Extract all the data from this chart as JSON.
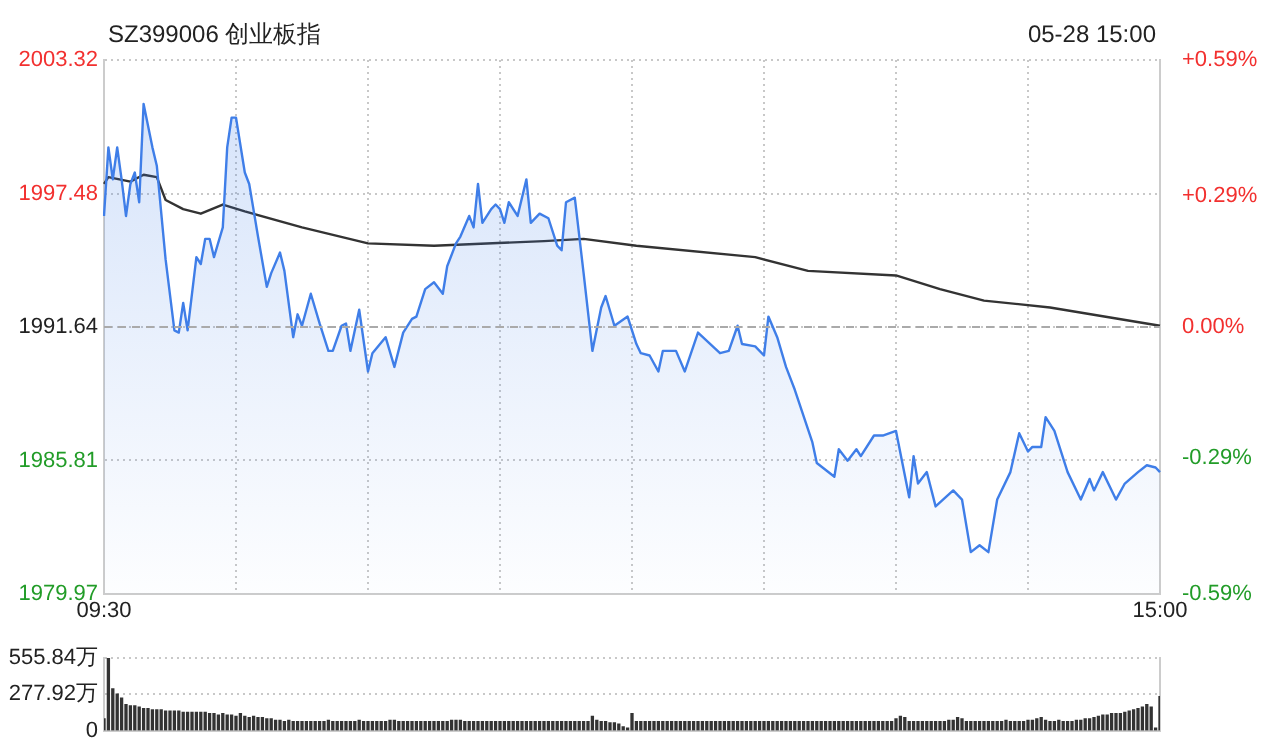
{
  "chart_data": [
    {
      "type": "line",
      "title": "SZ399006 创业板指",
      "annotations": [
        "05-28 15:00"
      ],
      "categories": [
        "09:30",
        null,
        null,
        null,
        null,
        null,
        null,
        null,
        null,
        null,
        null,
        null,
        null,
        null,
        null,
        null,
        null,
        null,
        null,
        null,
        null,
        null,
        null,
        null,
        null,
        null,
        null,
        null,
        null,
        null,
        null,
        null,
        null,
        null,
        null,
        null,
        null,
        null,
        null,
        null,
        null,
        null,
        null,
        null,
        null,
        null,
        null,
        null,
        null,
        null,
        null,
        null,
        null,
        null,
        null,
        null,
        null,
        null,
        null,
        null,
        null,
        null,
        null,
        null,
        null,
        null,
        null,
        null,
        null,
        null,
        null,
        null,
        null,
        null,
        null,
        null,
        null,
        null,
        null,
        null,
        null,
        null,
        null,
        null,
        null,
        null,
        null,
        null,
        null,
        null,
        null,
        null,
        null,
        null,
        null,
        null,
        null,
        null,
        null,
        null,
        null,
        null,
        null,
        null,
        null,
        null,
        null,
        null,
        null,
        null,
        null,
        null,
        null,
        null,
        null,
        null,
        null,
        null,
        null,
        null,
        null,
        null,
        null,
        null,
        null,
        null,
        null,
        null,
        null,
        null,
        null,
        null,
        null,
        null,
        null,
        null,
        null,
        null,
        null,
        null,
        null,
        null,
        null,
        null,
        null,
        null,
        null,
        null,
        null,
        null,
        null,
        null,
        null,
        null,
        null,
        null,
        null,
        null,
        null,
        null,
        null,
        null,
        null,
        null,
        null,
        null,
        null,
        null,
        null,
        null,
        null,
        null,
        null,
        null,
        null,
        null,
        null,
        null,
        null,
        null,
        null,
        null,
        null,
        null,
        null,
        null,
        null,
        null,
        null,
        null,
        null,
        null,
        null,
        null,
        null,
        null,
        null,
        null,
        null,
        null,
        null,
        null,
        null,
        null,
        null,
        null,
        null,
        null,
        null,
        null,
        null,
        null,
        null,
        null,
        null,
        null,
        null,
        null,
        null,
        null,
        null,
        null,
        null,
        null,
        null,
        null,
        null,
        null,
        null,
        null,
        null,
        null,
        null,
        null,
        null,
        null,
        null,
        null,
        null,
        null,
        "15:00"
      ],
      "ylim": [
        1979.97,
        2003.32
      ],
      "yticks": [
        1979.97,
        1985.81,
        1991.64,
        1997.48,
        2003.32
      ],
      "y2lim": [
        -0.59,
        0.59
      ],
      "y2ticks": [
        {
          "value": -0.59,
          "label": "-0.59%"
        },
        {
          "value": -0.29,
          "label": "-0.29%"
        },
        {
          "value": 0,
          "label": "0.00%"
        },
        {
          "value": 0.29,
          "label": "+0.29%"
        },
        {
          "value": 0.59,
          "label": "+0.59%"
        }
      ],
      "grid": true,
      "legend": false,
      "marker": "none",
      "ref_lines": [
        {
          "axis": "y",
          "value": 1991.64,
          "color": "#aaaaaa",
          "line_style": "dashed"
        }
      ],
      "series": [
        {
          "type": "area",
          "color": "#3f7ee8",
          "values": [
            1996.5,
            1999.5,
            1998.1,
            1999.5,
            1998.1,
            1996.5,
            1997.9,
            1998.4,
            1997.1,
            2001.4,
            null,
            1999.5,
            1998.7,
            null,
            1994.6,
            null,
            1991.5,
            1991.4,
            1992.7,
            1991.5,
            null,
            1994.7,
            1994.4,
            1995.5,
            1995.5,
            1994.7,
            null,
            1996.0,
            1999.5,
            2000.8,
            2000.8,
            null,
            1998.4,
            1997.9,
            null,
            1995.6,
            null,
            1993.4,
            1994.0,
            null,
            1994.9,
            1994.1,
            null,
            1991.2,
            1992.2,
            1991.7,
            null,
            1993.1,
            null,
            1991.8,
            null,
            1990.6,
            1990.6,
            null,
            1991.7,
            1991.8,
            1990.6,
            null,
            1992.4,
            null,
            1989.7,
            1990.5,
            null,
            null,
            1991.2,
            null,
            1989.9,
            null,
            1991.4,
            null,
            1992.0,
            1992.1,
            null,
            1993.3,
            null,
            1993.6,
            null,
            1993.1,
            1994.3,
            null,
            1995.3,
            1995.6,
            null,
            1996.5,
            1996.0,
            1997.9,
            1996.2,
            null,
            1996.8,
            1997.0,
            1996.8,
            1996.2,
            1997.1,
            null,
            1996.5,
            null,
            1998.1,
            1996.2,
            null,
            1996.6,
            null,
            1996.4,
            null,
            1995.2,
            1995.0,
            1997.1,
            null,
            1997.3,
            null,
            1994.0,
            null,
            1990.6,
            null,
            1992.5,
            1993.0,
            null,
            1991.7,
            null,
            null,
            1992.1,
            null,
            1990.9,
            1990.5,
            null,
            1990.4,
            null,
            1989.7,
            1990.6,
            null,
            null,
            1990.6,
            null,
            1989.7,
            null,
            null,
            1991.4,
            null,
            null,
            null,
            null,
            1990.5,
            null,
            1990.6,
            null,
            1991.7,
            1990.9,
            null,
            null,
            1990.8,
            null,
            1990.4,
            1992.1,
            null,
            1991.2,
            null,
            1989.9,
            null,
            1988.9,
            null,
            null,
            null,
            1986.6,
            1985.7,
            null,
            null,
            null,
            1985.1,
            1986.3,
            null,
            1985.8,
            null,
            1986.3,
            1986.0,
            null,
            null,
            1986.9,
            null,
            1986.9,
            null,
            null,
            1987.1,
            null,
            null,
            1984.2,
            1986.0,
            1984.8,
            null,
            1985.3,
            null,
            1983.8,
            null,
            null,
            null,
            1984.5,
            null,
            1984.1,
            null,
            1981.8,
            null,
            1982.1,
            null,
            1981.8,
            null,
            1984.1,
            null,
            null,
            1985.3,
            null,
            1987.0,
            null,
            1986.2,
            1986.4,
            null,
            1986.4,
            1987.7,
            null,
            1987.1,
            null,
            null,
            1985.3,
            null,
            null,
            1984.1,
            null,
            1985.0,
            1984.5,
            null,
            1985.3,
            null,
            null,
            1984.1,
            null,
            1984.8,
            null,
            null,
            1985.3,
            null,
            1985.6,
            null,
            1985.5,
            1985.3
          ]
        },
        {
          "type": "line",
          "color": "#333333",
          "values": [
            1997.9,
            1998.2,
            null,
            null,
            null,
            null,
            1998.0,
            null,
            null,
            1998.3,
            null,
            null,
            1998.2,
            null,
            1997.2,
            null,
            null,
            null,
            1996.8,
            null,
            null,
            null,
            1996.6,
            null,
            null,
            null,
            null,
            1997.0,
            null,
            null,
            null,
            null,
            1996.7,
            null,
            null,
            null,
            null,
            null,
            null,
            null,
            null,
            null,
            null,
            null,
            null,
            1996.0,
            null,
            null,
            null,
            null,
            null,
            null,
            null,
            null,
            null,
            null,
            null,
            null,
            null,
            null,
            1995.3,
            null,
            null,
            null,
            null,
            null,
            null,
            null,
            null,
            null,
            null,
            null,
            null,
            null,
            null,
            1995.2,
            null,
            null,
            null,
            null,
            null,
            null,
            null,
            null,
            null,
            null,
            null,
            null,
            null,
            null,
            null,
            null,
            null,
            null,
            null,
            null,
            null,
            null,
            null,
            null,
            1995.4,
            null,
            null,
            null,
            null,
            null,
            null,
            null,
            null,
            1995.5,
            null,
            null,
            null,
            null,
            null,
            null,
            null,
            null,
            null,
            null,
            null,
            1995.2,
            null,
            null,
            null,
            null,
            null,
            null,
            null,
            null,
            null,
            null,
            null,
            null,
            null,
            null,
            null,
            null,
            null,
            null,
            null,
            null,
            null,
            null,
            null,
            null,
            null,
            null,
            1994.7,
            null,
            null,
            null,
            null,
            null,
            null,
            null,
            null,
            null,
            null,
            null,
            1994.1,
            null,
            null,
            null,
            null,
            null,
            null,
            null,
            null,
            null,
            null,
            null,
            null,
            null,
            null,
            null,
            null,
            null,
            null,
            null,
            1993.9,
            null,
            null,
            null,
            null,
            null,
            null,
            null,
            null,
            null,
            1993.3,
            null,
            null,
            null,
            null,
            null,
            null,
            null,
            null,
            null,
            1992.8,
            null,
            null,
            null,
            null,
            null,
            null,
            null,
            null,
            null,
            null,
            null,
            null,
            null,
            null,
            1992.5,
            null,
            null,
            null,
            null,
            null,
            null,
            null,
            null,
            null,
            null,
            null,
            null,
            null,
            null,
            null,
            null,
            null,
            null,
            null,
            null,
            null,
            null,
            null,
            null,
            1991.7
          ]
        }
      ]
    },
    {
      "type": "bar",
      "color": "#333333",
      "tick_labels": "y",
      "grid": "y",
      "legend": false,
      "categories": [
        null,
        null,
        null,
        null,
        null,
        null,
        null,
        null,
        null,
        null,
        null,
        null,
        null,
        null,
        null,
        null,
        null,
        null,
        null,
        null,
        null,
        null,
        null,
        null,
        null,
        null,
        null,
        null,
        null,
        null,
        null,
        null,
        null,
        null,
        null,
        null,
        null,
        null,
        null,
        null,
        null,
        null,
        null,
        null,
        null,
        null,
        null,
        null,
        null,
        null,
        null,
        null,
        null,
        null,
        null,
        null,
        null,
        null,
        null,
        null,
        null,
        null,
        null,
        null,
        null,
        null,
        null,
        null,
        null,
        null,
        null,
        null,
        null,
        null,
        null,
        null,
        null,
        null,
        null,
        null,
        null,
        null,
        null,
        null,
        null,
        null,
        null,
        null,
        null,
        null,
        null,
        null,
        null,
        null,
        null,
        null,
        null,
        null,
        null,
        null,
        null,
        null,
        null,
        null,
        null,
        null,
        null,
        null,
        null,
        null,
        null,
        null,
        null,
        null,
        null,
        null,
        null,
        null,
        null,
        null,
        null,
        null,
        null,
        null,
        null,
        null,
        null,
        null,
        null,
        null,
        null,
        null,
        null,
        null,
        null,
        null,
        null,
        null,
        null,
        null,
        null,
        null,
        null,
        null,
        null,
        null,
        null,
        null,
        null,
        null,
        null,
        null,
        null,
        null,
        null,
        null,
        null,
        null,
        null,
        null,
        null,
        null,
        null,
        null,
        null,
        null,
        null,
        null,
        null,
        null,
        null,
        null,
        null,
        null,
        null,
        null,
        null,
        null,
        null,
        null,
        null,
        null,
        null,
        null,
        null,
        null,
        null,
        null,
        null,
        null,
        null,
        null,
        null,
        null,
        null,
        null,
        null,
        null,
        null,
        null,
        null,
        null,
        null,
        null,
        null,
        null,
        null,
        null,
        null,
        null,
        null,
        null,
        null,
        null,
        null,
        null,
        null,
        null,
        null,
        null,
        null,
        null,
        null,
        null,
        null,
        null,
        null,
        null,
        null,
        null,
        null,
        null,
        null,
        null,
        null,
        null,
        null,
        null,
        null,
        null,
        null
      ],
      "ylim": [
        0,
        555.84
      ],
      "yticks": [
        0,
        {
          "value": 277.92,
          "label": "277.92万"
        },
        {
          "value": 555.84,
          "label": "555.84万"
        }
      ],
      "values": [
        90,
        550,
        320,
        280,
        250,
        200,
        190,
        190,
        180,
        170,
        170,
        160,
        160,
        160,
        150,
        150,
        150,
        150,
        140,
        140,
        140,
        140,
        140,
        140,
        130,
        130,
        120,
        130,
        120,
        120,
        110,
        130,
        110,
        100,
        110,
        100,
        100,
        90,
        90,
        80,
        80,
        70,
        80,
        70,
        70,
        70,
        70,
        70,
        70,
        70,
        70,
        80,
        70,
        70,
        70,
        70,
        70,
        70,
        80,
        70,
        70,
        70,
        70,
        70,
        70,
        80,
        80,
        70,
        70,
        70,
        70,
        70,
        70,
        70,
        70,
        70,
        70,
        70,
        70,
        80,
        80,
        80,
        70,
        70,
        70,
        70,
        70,
        70,
        70,
        70,
        70,
        70,
        70,
        70,
        70,
        70,
        70,
        70,
        70,
        70,
        70,
        70,
        70,
        70,
        70,
        70,
        70,
        70,
        70,
        70,
        70,
        110,
        80,
        70,
        70,
        60,
        60,
        50,
        30,
        20,
        130,
        70,
        70,
        70,
        70,
        70,
        70,
        70,
        70,
        70,
        70,
        70,
        70,
        70,
        70,
        70,
        70,
        70,
        70,
        70,
        70,
        70,
        70,
        70,
        70,
        70,
        70,
        70,
        70,
        70,
        70,
        70,
        70,
        70,
        70,
        70,
        70,
        70,
        70,
        70,
        70,
        70,
        70,
        70,
        70,
        70,
        70,
        70,
        70,
        70,
        70,
        70,
        70,
        70,
        70,
        70,
        70,
        70,
        70,
        70,
        90,
        110,
        100,
        70,
        70,
        70,
        70,
        70,
        70,
        70,
        70,
        70,
        80,
        80,
        100,
        90,
        70,
        70,
        70,
        70,
        70,
        70,
        70,
        70,
        70,
        80,
        70,
        70,
        70,
        70,
        80,
        80,
        90,
        100,
        80,
        70,
        70,
        80,
        70,
        70,
        70,
        80,
        80,
        90,
        90,
        100,
        110,
        120,
        120,
        130,
        130,
        130,
        140,
        150,
        160,
        170,
        180,
        200,
        180,
        20,
        260
      ]
    }
  ]
}
